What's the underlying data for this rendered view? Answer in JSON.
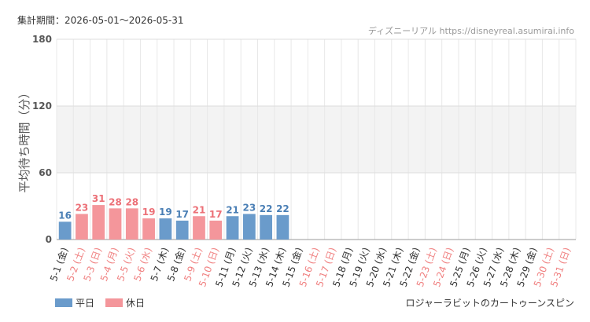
{
  "chart_data": {
    "type": "bar",
    "title": "集計期間：2026-05-01～2026-05-31",
    "source": "ディズニーリアル https://disneyreal.asumirai.info",
    "ylabel": "平均待ち時間（分）",
    "attraction": "ロジャーラビットのカートゥーンスピン",
    "categories": [
      "5-1 (金)",
      "5-2 (土)",
      "5-3 (日)",
      "5-4 (月)",
      "5-5 (火)",
      "5-6 (水)",
      "5-7 (木)",
      "5-8 (金)",
      "5-9 (土)",
      "5-10 (日)",
      "5-11 (月)",
      "5-12 (火)",
      "5-13 (水)",
      "5-14 (木)",
      "5-15 (金)",
      "5-16 (土)",
      "5-17 (日)",
      "5-18 (月)",
      "5-19 (火)",
      "5-20 (水)",
      "5-21 (木)",
      "5-22 (金)",
      "5-23 (土)",
      "5-24 (日)",
      "5-25 (月)",
      "5-26 (火)",
      "5-27 (水)",
      "5-28 (木)",
      "5-29 (金)",
      "5-30 (土)",
      "5-31 (日)"
    ],
    "category_colors": [
      "#333",
      "#f08080",
      "#f08080",
      "#f08080",
      "#f08080",
      "#f08080",
      "#333",
      "#333",
      "#f08080",
      "#f08080",
      "#333",
      "#333",
      "#333",
      "#333",
      "#333",
      "#f08080",
      "#f08080",
      "#333",
      "#333",
      "#333",
      "#333",
      "#333",
      "#f08080",
      "#f08080",
      "#333",
      "#333",
      "#333",
      "#333",
      "#333",
      "#f08080",
      "#f08080"
    ],
    "series": [
      {
        "name": "平日",
        "color": "#6a9bcb",
        "label_color": "#4a7fb5",
        "values": [
          16,
          null,
          null,
          null,
          null,
          null,
          19,
          17,
          null,
          null,
          21,
          23,
          22,
          22,
          null,
          null,
          null,
          null,
          null,
          null,
          null,
          null,
          null,
          null,
          null,
          null,
          null,
          null,
          null,
          null,
          null
        ]
      },
      {
        "name": "休日",
        "color": "#f4969b",
        "label_color": "#ec7077",
        "values": [
          null,
          23,
          31,
          28,
          28,
          19,
          null,
          null,
          21,
          17,
          null,
          null,
          null,
          null,
          null,
          null,
          null,
          null,
          null,
          null,
          null,
          null,
          null,
          null,
          null,
          null,
          null,
          null,
          null,
          null,
          null
        ]
      }
    ],
    "ylim": [
      0,
      180
    ],
    "yticks": [
      0,
      60,
      120,
      180
    ],
    "grid": true
  }
}
